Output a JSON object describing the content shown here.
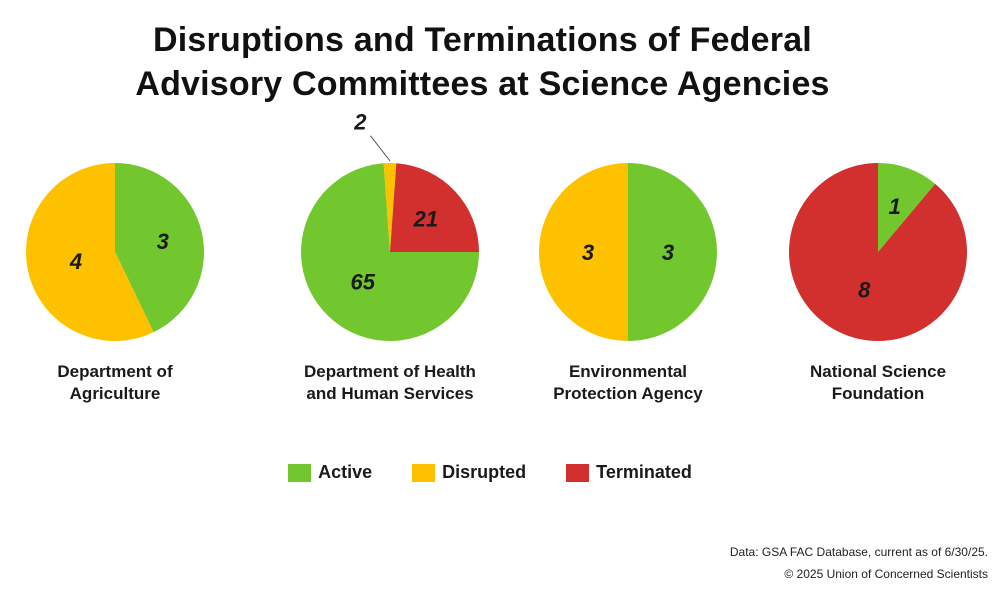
{
  "title": {
    "line1": "Disruptions and Terminations of Federal",
    "line2": "Advisory Committees at Science Agencies"
  },
  "colors": {
    "active": "#72C62E",
    "disrupted": "#FDC100",
    "terminated": "#D22F2F"
  },
  "legend": {
    "active": "Active",
    "disrupted": "Disrupted",
    "terminated": "Terminated"
  },
  "chart_data": [
    {
      "type": "pie",
      "title_lines": [
        "Department of",
        "Agriculture"
      ],
      "slices": [
        {
          "name": "Active",
          "value": 3
        },
        {
          "name": "Disrupted",
          "value": 4
        }
      ]
    },
    {
      "type": "pie",
      "title_lines": [
        "Department of Health",
        "and Human Services"
      ],
      "slices": [
        {
          "name": "Active",
          "value": 65
        },
        {
          "name": "Disrupted",
          "value": 2
        },
        {
          "name": "Terminated",
          "value": 21
        }
      ]
    },
    {
      "type": "pie",
      "title_lines": [
        "Environmental",
        "Protection Agency"
      ],
      "slices": [
        {
          "name": "Active",
          "value": 3
        },
        {
          "name": "Disrupted",
          "value": 3
        }
      ]
    },
    {
      "type": "pie",
      "title_lines": [
        "National Science",
        "Foundation"
      ],
      "slices": [
        {
          "name": "Active",
          "value": 1
        },
        {
          "name": "Terminated",
          "value": 8
        }
      ]
    }
  ],
  "footer": {
    "source": "Data: GSA FAC Database, current as of 6/30/25.",
    "copyright": "© 2025 Union of Concerned Scientists"
  }
}
